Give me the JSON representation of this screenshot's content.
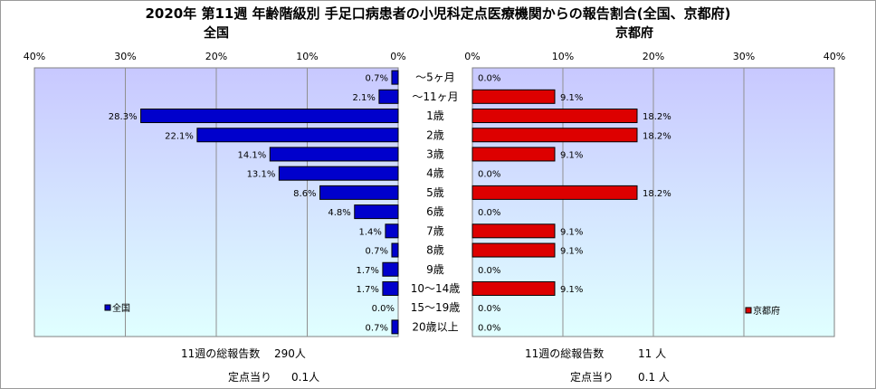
{
  "title": "2020年 第11週 年齢階級別 手足口病患者の小児科定点医療機関からの報告割合(全国、京都府)",
  "categories": [
    "～5ヶ月",
    "～11ヶ月",
    "1歳",
    "2歳",
    "3歳",
    "4歳",
    "5歳",
    "6歳",
    "7歳",
    "8歳",
    "9歳",
    "10～14歳",
    "15～19歳",
    "20歳以上"
  ],
  "chart_data": [
    {
      "type": "bar",
      "title": "全国",
      "orientation": "horizontal-reversed",
      "categories": [
        "～5ヶ月",
        "～11ヶ月",
        "1歳",
        "2歳",
        "3歳",
        "4歳",
        "5歳",
        "6歳",
        "7歳",
        "8歳",
        "9歳",
        "10～14歳",
        "15～19歳",
        "20歳以上"
      ],
      "series": [
        {
          "name": "全国",
          "values": [
            0.7,
            2.1,
            28.3,
            22.1,
            14.1,
            13.1,
            8.6,
            4.8,
            1.4,
            0.7,
            1.7,
            1.7,
            0.0,
            0.7
          ],
          "color": "#0000cc"
        }
      ],
      "value_labels": [
        "0.7%",
        "2.1%",
        "28.3%",
        "22.1%",
        "14.1%",
        "13.1%",
        "8.6%",
        "4.8%",
        "1.4%",
        "0.7%",
        "1.7%",
        "1.7%",
        "0.0%",
        "0.7%"
      ],
      "xlim": [
        0,
        40
      ],
      "xticks": [
        "40%",
        "30%",
        "20%",
        "10%",
        "0%"
      ],
      "grid": true,
      "legend": "bottom-left"
    },
    {
      "type": "bar",
      "title": "京都府",
      "orientation": "horizontal",
      "categories": [
        "～5ヶ月",
        "～11ヶ月",
        "1歳",
        "2歳",
        "3歳",
        "4歳",
        "5歳",
        "6歳",
        "7歳",
        "8歳",
        "9歳",
        "10～14歳",
        "15～19歳",
        "20歳以上"
      ],
      "series": [
        {
          "name": "京都府",
          "values": [
            0.0,
            9.1,
            18.2,
            18.2,
            9.1,
            0.0,
            18.2,
            0.0,
            9.1,
            9.1,
            0.0,
            9.1,
            0.0,
            0.0
          ],
          "color": "#dd0000"
        }
      ],
      "value_labels": [
        "0.0%",
        "9.1%",
        "18.2%",
        "18.2%",
        "9.1%",
        "0.0%",
        "18.2%",
        "0.0%",
        "9.1%",
        "9.1%",
        "0.0%",
        "9.1%",
        "0.0%",
        "0.0%"
      ],
      "xlim": [
        0,
        40
      ],
      "xticks": [
        "0%",
        "10%",
        "20%",
        "30%",
        "40%"
      ],
      "grid": true,
      "legend": "bottom-right"
    }
  ],
  "footer": {
    "left": {
      "total_label": "11週の総報告数",
      "total_value": "290人",
      "per_label": "定点当り",
      "per_value": "0.1人"
    },
    "right": {
      "total_label": "11週の総報告数",
      "total_value": "11 人",
      "per_label": "定点当り",
      "per_value": "0.1 人"
    }
  },
  "colors": {
    "national_bar": "#0000cc",
    "kyoto_bar": "#dd0000",
    "plot_bg_top": "#c8c8ff",
    "plot_bg_bottom": "#e0ffff"
  }
}
